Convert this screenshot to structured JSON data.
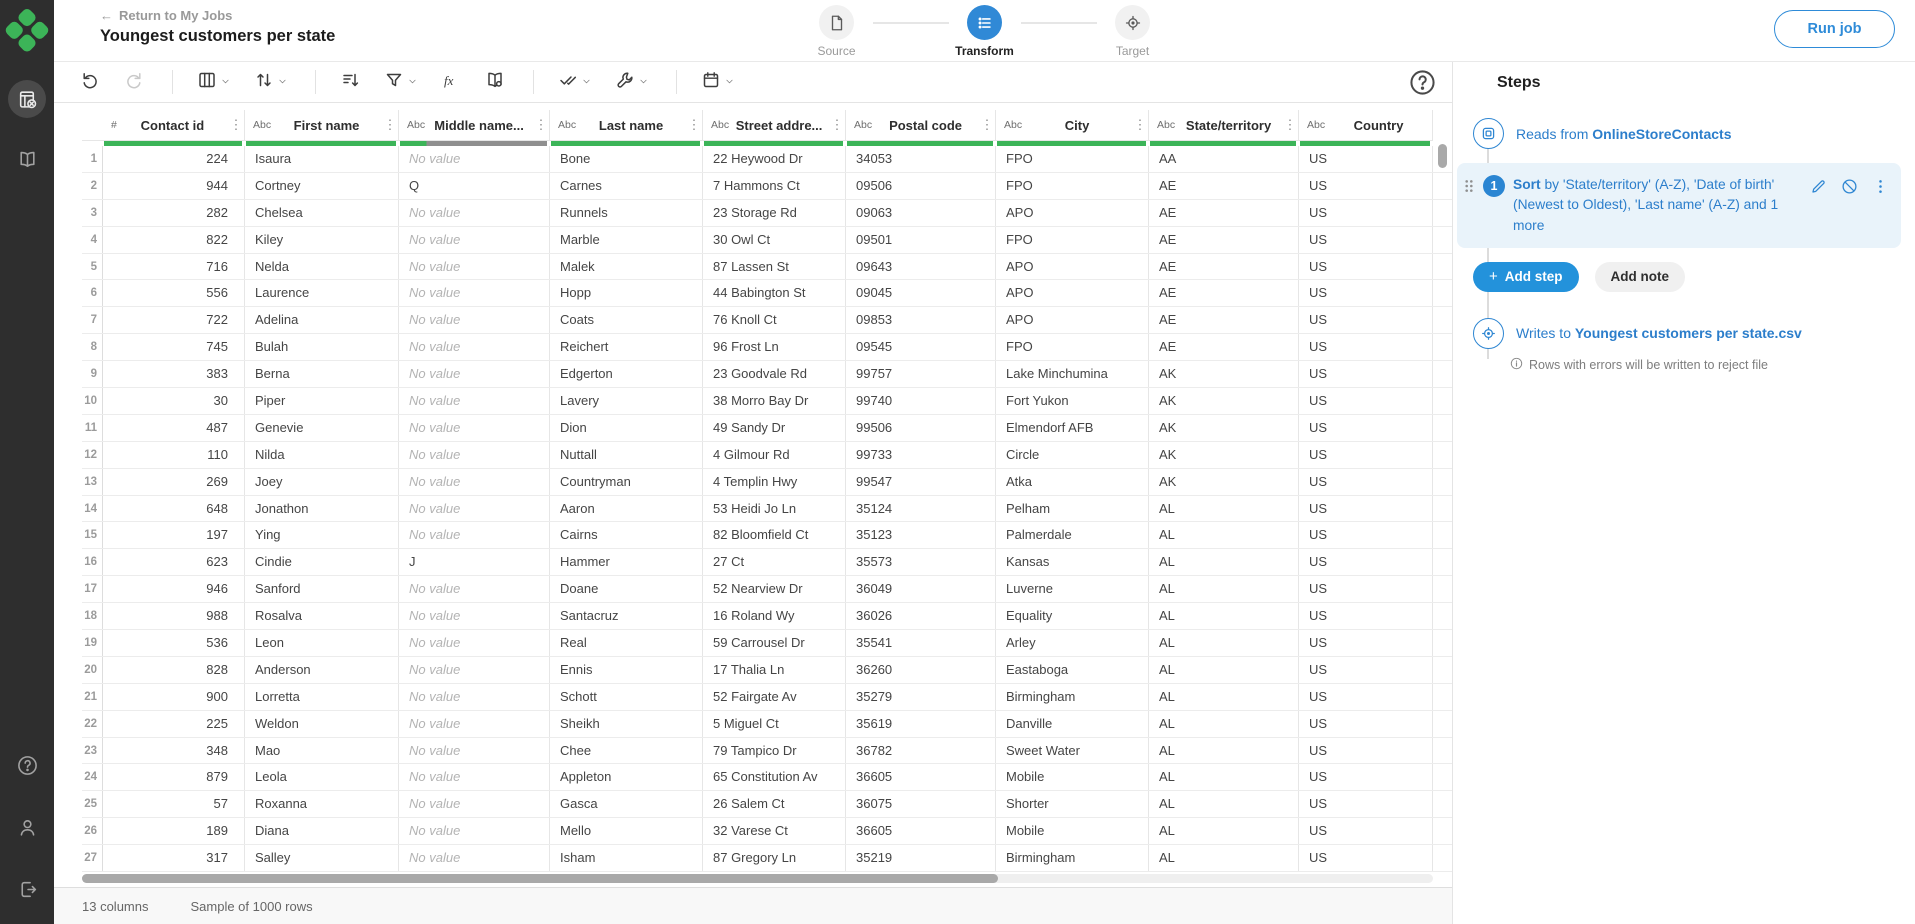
{
  "colors": {
    "accent_blue": "#2e8bd8",
    "brand_green": "#3cb458",
    "quality_green": "#3cb458",
    "quality_gray": "#8f8f8f",
    "sidebar_bg": "#2e2e2e",
    "step_highlight_bg": "#e9f3fa"
  },
  "sidebar": {
    "items": [
      {
        "icon": "jobs-icon",
        "active": true
      },
      {
        "icon": "library-icon",
        "active": false
      }
    ],
    "bottom_items": [
      {
        "icon": "help-icon"
      },
      {
        "icon": "account-icon"
      },
      {
        "icon": "logout-icon"
      }
    ]
  },
  "header": {
    "back_label": "Return to My Jobs",
    "back_arrow": "←",
    "title": "Youngest customers per state",
    "run_button": "Run job",
    "stepper": [
      {
        "label": "Source",
        "icon": "document-icon",
        "active": false
      },
      {
        "label": "Transform",
        "icon": "list-icon",
        "active": true
      },
      {
        "label": "Target",
        "icon": "target-icon",
        "active": false
      }
    ]
  },
  "toolbar": {
    "groups": [
      [
        {
          "icon": "undo",
          "disabled": false
        },
        {
          "icon": "redo",
          "disabled": true
        }
      ],
      [
        {
          "icon": "columns",
          "dropdown": true
        },
        {
          "icon": "swap-vertical",
          "dropdown": true
        }
      ],
      [
        {
          "icon": "sort-descending"
        },
        {
          "icon": "filter",
          "dropdown": true
        },
        {
          "icon": "formula"
        },
        {
          "icon": "book-settings"
        }
      ],
      [
        {
          "icon": "checkmarks",
          "dropdown": true
        },
        {
          "icon": "wrench",
          "dropdown": true
        }
      ],
      [
        {
          "icon": "calendar",
          "dropdown": true
        }
      ]
    ],
    "help_icon": "help"
  },
  "table": {
    "no_value_label": "No value",
    "columns": [
      {
        "label": "Contact id",
        "type": "#",
        "quality_green": 1,
        "numeric": true,
        "menu": true
      },
      {
        "label": "First name",
        "type": "Abc",
        "quality_green": 1,
        "numeric": false,
        "menu": true
      },
      {
        "label": "Middle name...",
        "type": "Abc",
        "quality_green": 0.18,
        "numeric": false,
        "menu": true
      },
      {
        "label": "Last name",
        "type": "Abc",
        "quality_green": 1,
        "numeric": false,
        "menu": true
      },
      {
        "label": "Street addre...",
        "type": "Abc",
        "quality_green": 1,
        "numeric": false,
        "menu": true
      },
      {
        "label": "Postal code",
        "type": "Abc",
        "quality_green": 1,
        "numeric": false,
        "menu": true
      },
      {
        "label": "City",
        "type": "Abc",
        "quality_green": 1,
        "numeric": false,
        "menu": true
      },
      {
        "label": "State/territory",
        "type": "Abc",
        "quality_green": 1,
        "numeric": false,
        "menu": true
      },
      {
        "label": "Country",
        "type": "Abc",
        "quality_green": 1,
        "numeric": false,
        "menu": false
      }
    ],
    "rows": [
      [
        "224",
        "Isaura",
        null,
        "Bone",
        "22 Heywood Dr",
        "34053",
        "FPO",
        "AA",
        "US"
      ],
      [
        "944",
        "Cortney",
        "Q",
        "Carnes",
        "7 Hammons Ct",
        "09506",
        "FPO",
        "AE",
        "US"
      ],
      [
        "282",
        "Chelsea",
        null,
        "Runnels",
        "23 Storage Rd",
        "09063",
        "APO",
        "AE",
        "US"
      ],
      [
        "822",
        "Kiley",
        null,
        "Marble",
        "30 Owl Ct",
        "09501",
        "FPO",
        "AE",
        "US"
      ],
      [
        "716",
        "Nelda",
        null,
        "Malek",
        "87 Lassen St",
        "09643",
        "APO",
        "AE",
        "US"
      ],
      [
        "556",
        "Laurence",
        null,
        "Hopp",
        "44 Babington St",
        "09045",
        "APO",
        "AE",
        "US"
      ],
      [
        "722",
        "Adelina",
        null,
        "Coats",
        "76 Knoll Ct",
        "09853",
        "APO",
        "AE",
        "US"
      ],
      [
        "745",
        "Bulah",
        null,
        "Reichert",
        "96 Frost Ln",
        "09545",
        "FPO",
        "AE",
        "US"
      ],
      [
        "383",
        "Berna",
        null,
        "Edgerton",
        "23 Goodvale Rd",
        "99757",
        "Lake Minchumina",
        "AK",
        "US"
      ],
      [
        "30",
        "Piper",
        null,
        "Lavery",
        "38 Morro Bay Dr",
        "99740",
        "Fort Yukon",
        "AK",
        "US"
      ],
      [
        "487",
        "Genevie",
        null,
        "Dion",
        "49 Sandy Dr",
        "99506",
        "Elmendorf AFB",
        "AK",
        "US"
      ],
      [
        "110",
        "Nilda",
        null,
        "Nuttall",
        "4 Gilmour Rd",
        "99733",
        "Circle",
        "AK",
        "US"
      ],
      [
        "269",
        "Joey",
        null,
        "Countryman",
        "4 Templin Hwy",
        "99547",
        "Atka",
        "AK",
        "US"
      ],
      [
        "648",
        "Jonathon",
        null,
        "Aaron",
        "53 Heidi Jo Ln",
        "35124",
        "Pelham",
        "AL",
        "US"
      ],
      [
        "197",
        "Ying",
        null,
        "Cairns",
        "82 Bloomfield Ct",
        "35123",
        "Palmerdale",
        "AL",
        "US"
      ],
      [
        "623",
        "Cindie",
        "J",
        "Hammer",
        "27 Ct",
        "35573",
        "Kansas",
        "AL",
        "US"
      ],
      [
        "946",
        "Sanford",
        null,
        "Doane",
        "52 Nearview Dr",
        "36049",
        "Luverne",
        "AL",
        "US"
      ],
      [
        "988",
        "Rosalva",
        null,
        "Santacruz",
        "16 Roland Wy",
        "36026",
        "Equality",
        "AL",
        "US"
      ],
      [
        "536",
        "Leon",
        null,
        "Real",
        "59 Carrousel Dr",
        "35541",
        "Arley",
        "AL",
        "US"
      ],
      [
        "828",
        "Anderson",
        null,
        "Ennis",
        "17 Thalia Ln",
        "36260",
        "Eastaboga",
        "AL",
        "US"
      ],
      [
        "900",
        "Lorretta",
        null,
        "Schott",
        "52 Fairgate Av",
        "35279",
        "Birmingham",
        "AL",
        "US"
      ],
      [
        "225",
        "Weldon",
        null,
        "Sheikh",
        "5 Miguel Ct",
        "35619",
        "Danville",
        "AL",
        "US"
      ],
      [
        "348",
        "Mao",
        null,
        "Chee",
        "79 Tampico Dr",
        "36782",
        "Sweet Water",
        "AL",
        "US"
      ],
      [
        "879",
        "Leola",
        null,
        "Appleton",
        "65 Constitution Av",
        "36605",
        "Mobile",
        "AL",
        "US"
      ],
      [
        "57",
        "Roxanna",
        null,
        "Gasca",
        "26 Salem Ct",
        "36075",
        "Shorter",
        "AL",
        "US"
      ],
      [
        "189",
        "Diana",
        null,
        "Mello",
        "32 Varese Ct",
        "36605",
        "Mobile",
        "AL",
        "US"
      ],
      [
        "317",
        "Salley",
        null,
        "Isham",
        "87 Gregory Ln",
        "35219",
        "Birmingham",
        "AL",
        "US"
      ]
    ]
  },
  "steps_panel": {
    "title": "Steps",
    "reads": {
      "prefix": "Reads from ",
      "dataset": "OnlineStoreContacts"
    },
    "sort_step": {
      "number": "1",
      "name": "Sort",
      "description": " by 'State/territory' (A-Z), 'Date of birth' (Newest to Oldest), 'Last name' (A-Z) and 1 more"
    },
    "add_step_label": "Add step",
    "add_step_plus": "+",
    "add_note_label": "Add note",
    "writes": {
      "prefix": "Writes to ",
      "target": "Youngest customers per state.csv"
    },
    "reject_note": "Rows with errors will be written to reject file"
  },
  "footer": {
    "columns_label": "13 columns",
    "sample_label": "Sample of 1000 rows"
  }
}
